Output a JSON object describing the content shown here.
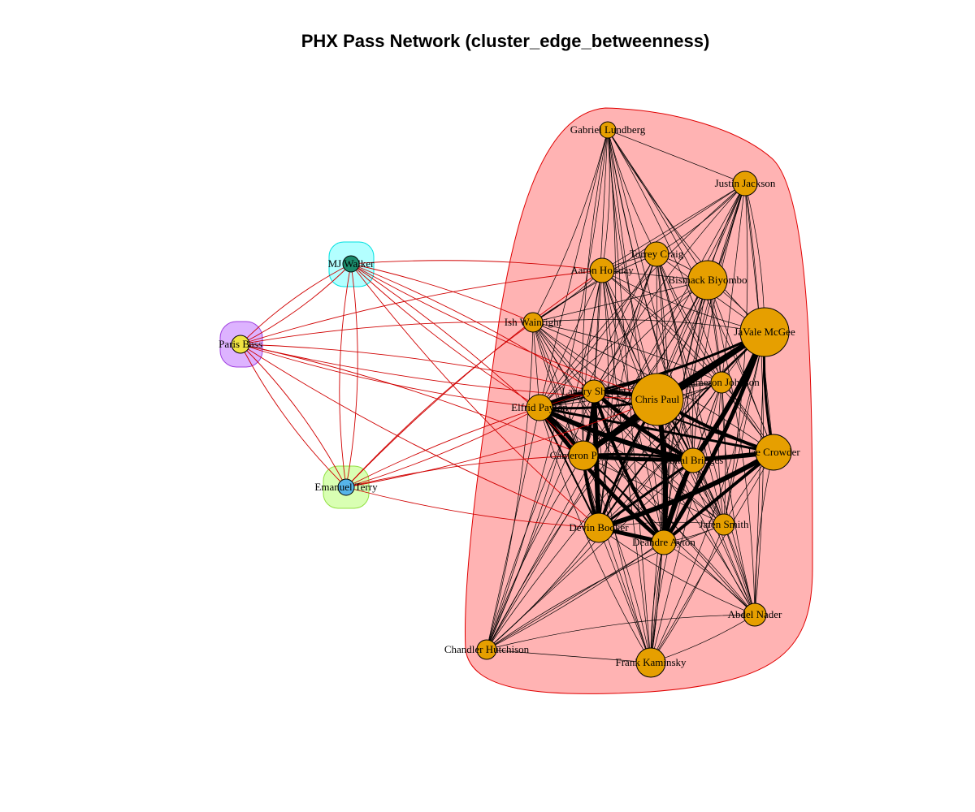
{
  "title": "PHX Pass Network (cluster_edge_betweenness)",
  "nodes": [
    {
      "label": "Gabriel Lundberg"
    },
    {
      "label": "Justin Jackson"
    },
    {
      "label": "Torrey Craig"
    },
    {
      "label": "Aaron Holiday"
    },
    {
      "label": "Bismack Biyombo"
    },
    {
      "label": "JaVale McGee"
    },
    {
      "label": "Ish Wainright"
    },
    {
      "label": "Landry Shamet"
    },
    {
      "label": "Chris Paul"
    },
    {
      "label": "Cameron Johnson"
    },
    {
      "label": "Elfrid Payton"
    },
    {
      "label": "Cameron Payne"
    },
    {
      "label": "Jae Crowder"
    },
    {
      "label": "Mikal Bridges"
    },
    {
      "label": "Jalen Smith"
    },
    {
      "label": "Devin Booker"
    },
    {
      "label": "Deandre Ayton"
    },
    {
      "label": "Abdel Nader"
    },
    {
      "label": "Chandler Hutchison"
    },
    {
      "label": "Frank Kaminsky"
    },
    {
      "label": "MJ Walker"
    },
    {
      "label": "Paris Bass"
    },
    {
      "label": "Emanuel Terry"
    }
  ]
}
